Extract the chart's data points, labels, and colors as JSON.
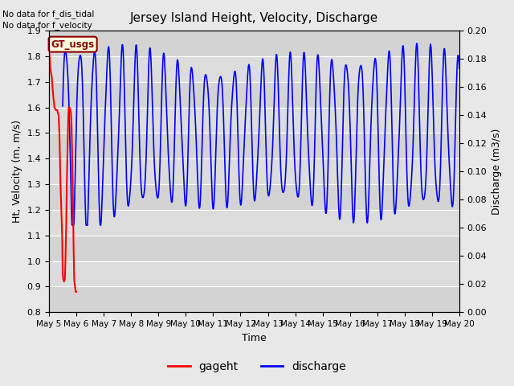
{
  "title": "Jersey Island Height, Velocity, Discharge",
  "xlabel": "Time",
  "ylabel_left": "Ht, Velocity (m, m/s)",
  "ylabel_right": "Discharge (m3/s)",
  "ylim_left": [
    0.8,
    1.9
  ],
  "ylim_right": [
    0.0,
    0.2
  ],
  "yticks_left": [
    0.8,
    0.9,
    1.0,
    1.1,
    1.2,
    1.3,
    1.4,
    1.5,
    1.6,
    1.7,
    1.8,
    1.9
  ],
  "yticks_right": [
    0.0,
    0.02,
    0.04,
    0.06,
    0.08,
    0.1,
    0.12,
    0.14,
    0.16,
    0.18,
    0.2
  ],
  "text_no_data_1": "No data for f_dis_tidal",
  "text_no_data_2": "No data for f_velocity",
  "legend_label_box": "GT_usgs",
  "legend_label_red": "gageht",
  "legend_label_blue": "discharge",
  "background_color": "#e8e8e8",
  "plot_bg_color": "#dcdcdc",
  "plot_bg_alt": "#d0d0d0",
  "line_red_color": "#ff0000",
  "line_blue_color": "#0000ff",
  "xtick_labels": [
    "May 5",
    "May 6",
    "May 7",
    "May 8",
    "May 9",
    "May 10",
    "May 11",
    "May 12",
    "May 13",
    "May 14",
    "May 15",
    "May 16",
    "May 17",
    "May 18",
    "May 19",
    "May 20"
  ],
  "n_days": 15,
  "figsize": [
    6.4,
    4.8
  ],
  "dpi": 100
}
